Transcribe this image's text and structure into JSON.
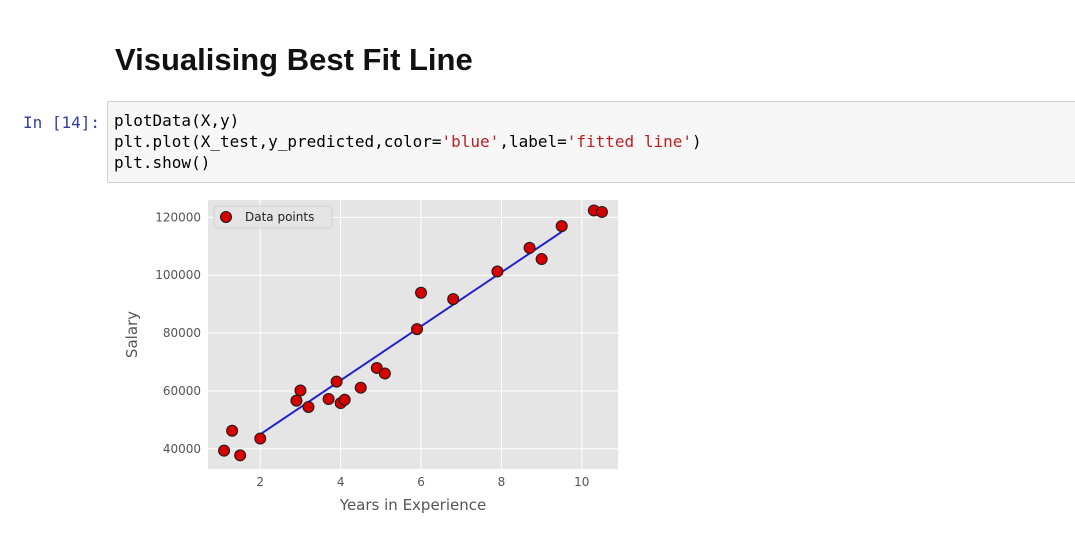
{
  "notebook": {
    "heading": "Visualising Best Fit Line",
    "cell": {
      "prompt": "In [14]:",
      "code_lines": [
        [
          {
            "t": "plotData(X,y)"
          }
        ],
        [
          {
            "t": "plt.plot(X_test,y_predicted,color="
          },
          {
            "t": "'blue'",
            "s": true
          },
          {
            "t": ",label="
          },
          {
            "t": "'fitted line'",
            "s": true
          },
          {
            "t": ")"
          }
        ],
        [
          {
            "t": "plt.show()"
          }
        ]
      ]
    }
  },
  "chart_data": {
    "type": "scatter",
    "title": "",
    "xlabel": "Years in Experience",
    "ylabel": "Salary",
    "xlim": [
      0.7,
      10.9
    ],
    "ylim": [
      33000,
      126000
    ],
    "xticks": [
      2,
      4,
      6,
      8,
      10
    ],
    "yticks": [
      40000,
      60000,
      80000,
      100000,
      120000
    ],
    "grid": true,
    "legend": {
      "placement": "upper-left",
      "entries": [
        "Data points"
      ]
    },
    "colors": {
      "background": "#e5e5e5",
      "marker": "#d40000",
      "marker_edge": "#1a1a1a",
      "line": "#2222cc",
      "axis_text": "#555555"
    },
    "series": [
      {
        "name": "Data points",
        "kind": "scatter",
        "x": [
          1.1,
          1.3,
          1.5,
          2.0,
          2.9,
          3.0,
          3.2,
          3.7,
          3.9,
          4.0,
          4.1,
          4.5,
          4.9,
          5.1,
          5.9,
          6.0,
          6.8,
          7.9,
          8.7,
          9.0,
          9.5,
          10.3,
          10.5
        ],
        "y": [
          39343,
          46205,
          37731,
          43525,
          56642,
          60150,
          54445,
          57189,
          63218,
          55794,
          56957,
          61111,
          67938,
          66029,
          81363,
          93940,
          91738,
          101302,
          109431,
          105582,
          116969,
          122391,
          121872
        ]
      },
      {
        "kind": "line",
        "x": [
          2.0,
          9.5
        ],
        "y": [
          45000,
          115000
        ]
      }
    ]
  }
}
